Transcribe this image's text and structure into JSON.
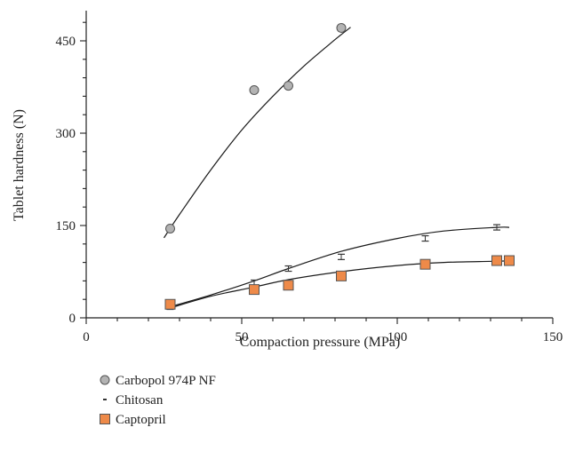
{
  "chart_data": {
    "type": "scatter",
    "xlabel": "Compaction pressure (MPa)",
    "ylabel": "Tablet hardness (N)",
    "xlim": [
      0,
      150
    ],
    "ylim": [
      0,
      500
    ],
    "xticks": [
      0,
      50,
      100,
      150
    ],
    "yticks": [
      0,
      150,
      300,
      450
    ],
    "grid": false,
    "legend_position": "bottom-left",
    "series": [
      {
        "name": "Carbopol 974P NF",
        "marker": "circle",
        "color": "#b3b3b3",
        "x": [
          27,
          54,
          65,
          82
        ],
        "y": [
          145,
          370,
          377,
          471
        ],
        "fit_x": [
          25,
          30,
          40,
          50,
          60,
          70,
          80,
          85
        ],
        "fit_y": [
          130,
          168,
          240,
          305,
          360,
          409,
          452,
          472
        ]
      },
      {
        "name": "Chitosan",
        "marker": "dash",
        "color": "#333333",
        "x": [
          27,
          54,
          65,
          82,
          109,
          132
        ],
        "y": [
          18,
          57,
          80,
          99,
          129,
          147
        ],
        "fit_x": [
          27,
          40,
          54,
          65,
          82,
          100,
          115,
          132,
          136
        ],
        "fit_y": [
          18,
          37,
          60,
          80,
          108,
          129,
          141,
          147,
          147
        ]
      },
      {
        "name": "Captopril",
        "marker": "square",
        "color": "#ee8a49",
        "x": [
          27,
          54,
          65,
          82,
          109,
          132,
          136
        ],
        "y": [
          22,
          46,
          53,
          68,
          87,
          93,
          93
        ],
        "fit_x": [
          27,
          40,
          54,
          65,
          82,
          100,
          115,
          132,
          136
        ],
        "fit_y": [
          16,
          35,
          50,
          62,
          75,
          85,
          90,
          92,
          93
        ]
      }
    ]
  }
}
